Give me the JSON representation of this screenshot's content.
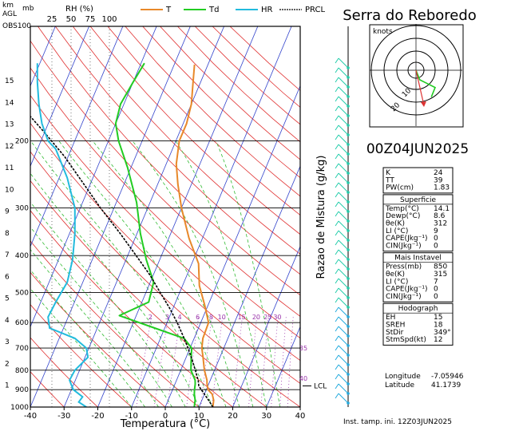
{
  "station": "Serra do Reboredo",
  "time_label": "00Z04JUN2025",
  "init_label": "Inst. tamp. ini. 12Z03JUN2025",
  "legend": [
    {
      "key": "T",
      "color": "#e8882a"
    },
    {
      "key": "Td",
      "color": "#22cc22"
    },
    {
      "key": "HR",
      "color": "#22bbdd"
    },
    {
      "key": "PRCL",
      "color": "#000000"
    }
  ],
  "hodograph": {
    "label": "knots",
    "rings": [
      "10",
      "20"
    ]
  },
  "indices": {
    "rows": [
      {
        "k": "K",
        "v": "24"
      },
      {
        "k": "TT",
        "v": "39"
      },
      {
        "k": "PW(cm)",
        "v": "1.83"
      }
    ]
  },
  "superficie": {
    "title": "Superficie",
    "rows": [
      {
        "k": "Temp(°C)",
        "v": "14.1"
      },
      {
        "k": "Dewp(°C)",
        "v": "8.6"
      },
      {
        "k": "θe(K)",
        "v": "312"
      },
      {
        "k": "LI (°C)",
        "v": "9"
      },
      {
        "k": "CAPE(Jkg⁻¹)",
        "v": "0"
      },
      {
        "k": "CIN(Jkg⁻¹)",
        "v": "0"
      }
    ]
  },
  "instavel": {
    "title": "Mais Instavel",
    "rows": [
      {
        "k": "Press(mb)",
        "v": "850"
      },
      {
        "k": "θe(K)",
        "v": "315"
      },
      {
        "k": "LI (°C)",
        "v": "7"
      },
      {
        "k": "CAPE(Jkg⁻¹)",
        "v": "0"
      },
      {
        "k": "CIN(Jkg⁻¹)",
        "v": "0"
      }
    ]
  },
  "hodografo": {
    "title": "Hodograph",
    "rows": [
      {
        "k": "EH",
        "v": "15"
      },
      {
        "k": "SREH",
        "v": "18"
      },
      {
        "k": "StDir",
        "v": "349°"
      },
      {
        "k": "StmSpd(kt)",
        "v": "12"
      }
    ]
  },
  "location": {
    "rows": [
      {
        "k": "Longitude",
        "v": "-7.05946"
      },
      {
        "k": "Latitude",
        "v": "41.1739"
      }
    ]
  },
  "chart_data": {
    "type": "line",
    "xlabel": "Temperatura (°C)",
    "ylabel_right": "Razao de Mistura (g/kg)",
    "top_left_labels": {
      "km": "km",
      "agl": "AGL",
      "mb": "mb",
      "rh": "RH (%)",
      "obs": "OBS100"
    },
    "lcl_label": "LCL",
    "xlim": [
      -40,
      40
    ],
    "x_ticks": [
      "-40",
      "-30",
      "-20",
      "-10",
      "0",
      "10",
      "20",
      "30",
      "40"
    ],
    "pressure_ticks": [
      "1000",
      "900",
      "800",
      "700",
      "600",
      "500",
      "400",
      "300",
      "200"
    ],
    "pressure_tick_values": [
      1000,
      900,
      800,
      700,
      600,
      500,
      400,
      300,
      200
    ],
    "height_ticks": [
      "1",
      "2",
      "3",
      "4",
      "5",
      "6",
      "7",
      "8",
      "9",
      "10",
      "11",
      "12",
      "13",
      "14",
      "15"
    ],
    "rh_ticks": [
      "25",
      "50",
      "75",
      "100"
    ],
    "mixing_ratio_labels": [
      "2",
      "3",
      "4",
      "6",
      "8",
      "10",
      "15",
      "20",
      "25",
      "30",
      "35",
      "40"
    ],
    "series": [
      {
        "name": "T",
        "color": "#e8882a",
        "points": [
          [
            14.1,
            1000
          ],
          [
            13.5,
            960
          ],
          [
            12.3,
            925
          ],
          [
            10.5,
            900
          ],
          [
            9.5,
            870
          ],
          [
            9,
            850
          ],
          [
            7,
            800
          ],
          [
            5,
            740
          ],
          [
            3.5,
            700
          ],
          [
            2.6,
            660
          ],
          [
            2.3,
            600
          ],
          [
            -1,
            540
          ],
          [
            -5,
            480
          ],
          [
            -8,
            420
          ],
          [
            -14,
            360
          ],
          [
            -20,
            300
          ],
          [
            -24,
            260
          ],
          [
            -27,
            230
          ],
          [
            -29,
            200
          ],
          [
            -29,
            180
          ],
          [
            -30,
            160
          ],
          [
            -32,
            142
          ],
          [
            -34,
            126
          ]
        ]
      },
      {
        "name": "Td",
        "color": "#22cc22",
        "points": [
          [
            8.6,
            1000
          ],
          [
            8,
            960
          ],
          [
            7,
            925
          ],
          [
            6.5,
            900
          ],
          [
            6,
            870
          ],
          [
            5.5,
            850
          ],
          [
            3,
            800
          ],
          [
            1.5,
            740
          ],
          [
            0.5,
            700
          ],
          [
            -3,
            660
          ],
          [
            -13,
            620
          ],
          [
            -25,
            575
          ],
          [
            -18,
            530
          ],
          [
            -19,
            470
          ],
          [
            -24,
            410
          ],
          [
            -29,
            350
          ],
          [
            -34,
            290
          ],
          [
            -41,
            235
          ],
          [
            -47,
            200
          ],
          [
            -50,
            180
          ],
          [
            -51,
            160
          ],
          [
            -50,
            140
          ],
          [
            -49,
            125
          ]
        ]
      },
      {
        "name": "PRCL",
        "color": "#000000",
        "points": [
          [
            14.1,
            1000
          ],
          [
            12,
            960
          ],
          [
            10,
            925
          ],
          [
            8.5,
            900
          ],
          [
            7.3,
            880
          ],
          [
            6.4,
            850
          ],
          [
            4.3,
            800
          ],
          [
            2,
            750
          ],
          [
            -0.6,
            700
          ],
          [
            -3.6,
            650
          ],
          [
            -7,
            600
          ],
          [
            -11,
            550
          ],
          [
            -15.8,
            500
          ],
          [
            -21,
            450
          ],
          [
            -27.5,
            400
          ],
          [
            -35,
            350
          ],
          [
            -44,
            300
          ],
          [
            -54,
            250
          ],
          [
            -61,
            220
          ],
          [
            -70,
            190
          ],
          [
            -79,
            165
          ],
          [
            -88,
            140
          ],
          [
            -96,
            120
          ],
          [
            -102,
            107
          ],
          [
            -107,
            100
          ]
        ]
      }
    ],
    "hr_series": {
      "name": "HR",
      "color": "#22bbdd",
      "points": [
        [
          70,
          1000
        ],
        [
          60,
          970
        ],
        [
          65,
          940
        ],
        [
          53,
          900
        ],
        [
          50,
          870
        ],
        [
          48,
          850
        ],
        [
          55,
          800
        ],
        [
          72,
          740
        ],
        [
          70,
          700
        ],
        [
          55,
          660
        ],
        [
          22,
          620
        ],
        [
          20,
          580
        ],
        [
          30,
          530
        ],
        [
          45,
          470
        ],
        [
          52,
          410
        ],
        [
          55,
          350
        ],
        [
          55,
          300
        ],
        [
          45,
          250
        ],
        [
          30,
          210
        ],
        [
          20,
          200
        ],
        [
          12,
          180
        ],
        [
          8,
          160
        ],
        [
          6,
          140
        ],
        [
          6,
          125
        ]
      ]
    },
    "hodograph_trace": [
      [
        0,
        0
      ],
      [
        2,
        5
      ],
      [
        6,
        7
      ],
      [
        10,
        9
      ],
      [
        8,
        14
      ]
    ]
  }
}
